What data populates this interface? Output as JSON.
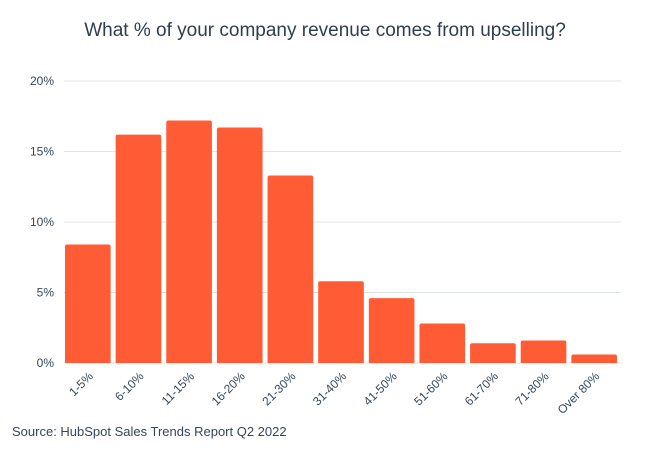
{
  "chart_data": {
    "type": "bar",
    "title": "What % of your company revenue comes from upselling?",
    "categories": [
      "1-5%",
      "6-10%",
      "11-15%",
      "16-20%",
      "21-30%",
      "31-40%",
      "41-50%",
      "51-60%",
      "61-70%",
      "71-80%",
      "Over 80%"
    ],
    "values": [
      8.4,
      16.2,
      17.2,
      16.7,
      13.3,
      5.8,
      4.6,
      2.8,
      1.4,
      1.6,
      0.6
    ],
    "ylim": [
      0,
      20
    ],
    "yticks": [
      "0%",
      "5%",
      "10%",
      "15%",
      "20%"
    ],
    "ytick_values": [
      0,
      5,
      10,
      15,
      20
    ],
    "xlabel": "",
    "ylabel": "",
    "grid": true,
    "bar_color": "#ff5c35",
    "grid_color": "#dfe3eb"
  },
  "source": "Source: HubSpot Sales Trends Report Q2 2022"
}
